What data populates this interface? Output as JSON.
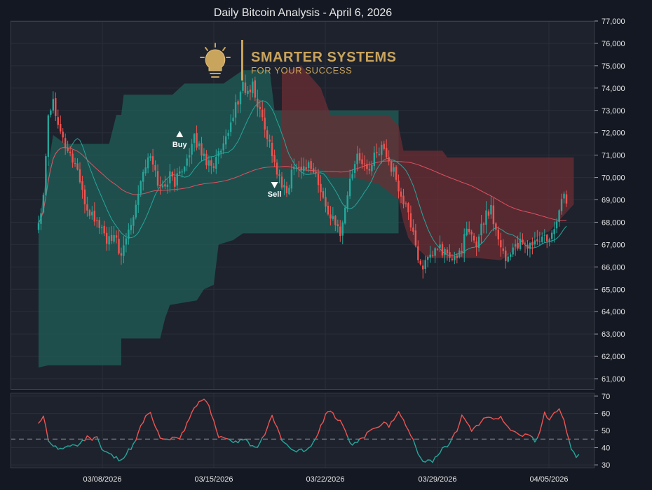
{
  "chart_data": {
    "type": "candlestick",
    "title": "Daily Bitcoin Analysis - April 6, 2026",
    "x_tick_labels": [
      "03/08/2026",
      "03/15/2026",
      "03/22/2026",
      "03/29/2026",
      "04/05/2026"
    ],
    "price_axis": {
      "ylim": [
        60500,
        77000
      ],
      "ticks": [
        61000,
        62000,
        63000,
        64000,
        65000,
        66000,
        67000,
        68000,
        69000,
        70000,
        71000,
        72000,
        73000,
        74000,
        75000,
        76000,
        77000
      ],
      "tick_labels": [
        "61,000",
        "62,000",
        "63,000",
        "64,000",
        "65,000",
        "66,000",
        "67,000",
        "68,000",
        "69,000",
        "70,000",
        "71,000",
        "72,000",
        "73,000",
        "74,000",
        "75,000",
        "76,000",
        "77,000"
      ],
      "side": "right"
    },
    "oscillator_axis": {
      "ylim": [
        28,
        72
      ],
      "ticks": [
        30,
        40,
        50,
        60,
        70
      ],
      "tick_labels": [
        "30",
        "40",
        "50",
        "60",
        "70"
      ],
      "reference_level": 45
    },
    "grid": true,
    "colors": {
      "up": "#26a69a",
      "down": "#ef5350",
      "bull_zone": "#1f5f58",
      "bear_zone": "#6b2e34",
      "long_ma": "#e05060",
      "short_ma": "#26a69a",
      "osc_bull": "#26a69a",
      "osc_bear": "#ef5350",
      "background": "#1e222d",
      "logo": "#c9a45c"
    },
    "price_anchors": [
      [
        0,
        68000
      ],
      [
        2,
        69300
      ],
      [
        4,
        72900
      ],
      [
        6,
        73400
      ],
      [
        8,
        72600
      ],
      [
        10,
        71700
      ],
      [
        12,
        71200
      ],
      [
        14,
        70800
      ],
      [
        16,
        70400
      ],
      [
        18,
        69200
      ],
      [
        20,
        68600
      ],
      [
        22,
        68300
      ],
      [
        24,
        68000
      ],
      [
        26,
        67700
      ],
      [
        28,
        67200
      ],
      [
        30,
        67100
      ],
      [
        32,
        67300
      ],
      [
        34,
        66300
      ],
      [
        36,
        67300
      ],
      [
        38,
        68000
      ],
      [
        40,
        68900
      ],
      [
        42,
        69900
      ],
      [
        44,
        70600
      ],
      [
        46,
        70900
      ],
      [
        48,
        70200
      ],
      [
        50,
        69500
      ],
      [
        52,
        69700
      ],
      [
        54,
        70100
      ],
      [
        56,
        69800
      ],
      [
        58,
        70200
      ],
      [
        60,
        70700
      ],
      [
        62,
        70900
      ],
      [
        64,
        71700
      ],
      [
        66,
        71400
      ],
      [
        68,
        70900
      ],
      [
        70,
        70700
      ],
      [
        72,
        70600
      ],
      [
        74,
        71000
      ],
      [
        76,
        71300
      ],
      [
        78,
        71900
      ],
      [
        80,
        72900
      ],
      [
        82,
        73400
      ],
      [
        84,
        74200
      ],
      [
        86,
        73700
      ],
      [
        88,
        74100
      ],
      [
        90,
        73200
      ],
      [
        92,
        72700
      ],
      [
        94,
        71900
      ],
      [
        96,
        71100
      ],
      [
        98,
        70200
      ],
      [
        100,
        69600
      ],
      [
        102,
        69300
      ],
      [
        104,
        70200
      ],
      [
        106,
        70700
      ],
      [
        108,
        70300
      ],
      [
        110,
        70600
      ],
      [
        112,
        70500
      ],
      [
        114,
        70100
      ],
      [
        116,
        69300
      ],
      [
        118,
        68700
      ],
      [
        120,
        68300
      ],
      [
        122,
        67800
      ],
      [
        124,
        67600
      ],
      [
        126,
        68600
      ],
      [
        128,
        69900
      ],
      [
        130,
        70700
      ],
      [
        132,
        71000
      ],
      [
        134,
        70500
      ],
      [
        136,
        70300
      ],
      [
        138,
        70900
      ],
      [
        140,
        71100
      ],
      [
        142,
        71500
      ],
      [
        144,
        70700
      ],
      [
        146,
        70200
      ],
      [
        148,
        69500
      ],
      [
        150,
        68900
      ],
      [
        152,
        68300
      ],
      [
        154,
        67600
      ],
      [
        156,
        66300
      ],
      [
        158,
        66100
      ],
      [
        160,
        66200
      ],
      [
        162,
        66500
      ],
      [
        164,
        66900
      ],
      [
        166,
        66700
      ],
      [
        168,
        66600
      ],
      [
        170,
        66200
      ],
      [
        172,
        66500
      ],
      [
        174,
        66900
      ],
      [
        176,
        67600
      ],
      [
        178,
        67300
      ],
      [
        180,
        67000
      ],
      [
        182,
        67900
      ],
      [
        184,
        68300
      ],
      [
        186,
        68700
      ],
      [
        188,
        67600
      ],
      [
        190,
        67100
      ],
      [
        192,
        66300
      ],
      [
        194,
        66700
      ],
      [
        196,
        67000
      ],
      [
        198,
        67000
      ],
      [
        200,
        66900
      ],
      [
        202,
        67000
      ],
      [
        204,
        67100
      ],
      [
        206,
        67200
      ],
      [
        208,
        67300
      ],
      [
        210,
        67100
      ],
      [
        212,
        67600
      ],
      [
        214,
        68700
      ],
      [
        216,
        69200
      ],
      [
        217,
        69000
      ]
    ],
    "oscillator_anchors": [
      [
        0,
        55
      ],
      [
        2,
        58
      ],
      [
        4,
        45
      ],
      [
        6,
        41
      ],
      [
        8,
        40
      ],
      [
        10,
        39
      ],
      [
        12,
        41
      ],
      [
        14,
        42
      ],
      [
        16,
        40
      ],
      [
        18,
        44
      ],
      [
        20,
        46
      ],
      [
        22,
        45
      ],
      [
        24,
        47
      ],
      [
        26,
        38
      ],
      [
        28,
        37
      ],
      [
        30,
        36
      ],
      [
        32,
        34
      ],
      [
        34,
        32
      ],
      [
        36,
        37
      ],
      [
        38,
        40
      ],
      [
        40,
        45
      ],
      [
        42,
        52
      ],
      [
        44,
        58
      ],
      [
        46,
        60
      ],
      [
        48,
        52
      ],
      [
        50,
        46
      ],
      [
        52,
        44
      ],
      [
        54,
        45
      ],
      [
        56,
        47
      ],
      [
        58,
        46
      ],
      [
        60,
        50
      ],
      [
        62,
        57
      ],
      [
        64,
        63
      ],
      [
        66,
        67
      ],
      [
        68,
        68
      ],
      [
        70,
        64
      ],
      [
        72,
        56
      ],
      [
        74,
        47
      ],
      [
        76,
        45
      ],
      [
        78,
        44
      ],
      [
        80,
        44
      ],
      [
        82,
        43
      ],
      [
        84,
        45
      ],
      [
        86,
        43
      ],
      [
        88,
        41
      ],
      [
        90,
        40
      ],
      [
        92,
        45
      ],
      [
        94,
        51
      ],
      [
        96,
        59
      ],
      [
        98,
        52
      ],
      [
        100,
        45
      ],
      [
        102,
        41
      ],
      [
        104,
        40
      ],
      [
        106,
        38
      ],
      [
        108,
        39
      ],
      [
        110,
        38
      ],
      [
        112,
        41
      ],
      [
        114,
        45
      ],
      [
        116,
        52
      ],
      [
        118,
        59
      ],
      [
        120,
        61
      ],
      [
        122,
        58
      ],
      [
        124,
        55
      ],
      [
        126,
        50
      ],
      [
        128,
        43
      ],
      [
        130,
        42
      ],
      [
        132,
        44
      ],
      [
        134,
        46
      ],
      [
        136,
        50
      ],
      [
        138,
        52
      ],
      [
        140,
        53
      ],
      [
        142,
        55
      ],
      [
        144,
        52
      ],
      [
        146,
        57
      ],
      [
        148,
        61
      ],
      [
        150,
        57
      ],
      [
        152,
        50
      ],
      [
        154,
        44
      ],
      [
        156,
        36
      ],
      [
        158,
        33
      ],
      [
        160,
        32
      ],
      [
        162,
        32
      ],
      [
        164,
        35
      ],
      [
        166,
        39
      ],
      [
        168,
        41
      ],
      [
        170,
        45
      ],
      [
        172,
        50
      ],
      [
        174,
        60
      ],
      [
        176,
        54
      ],
      [
        178,
        50
      ],
      [
        180,
        52
      ],
      [
        182,
        56
      ],
      [
        184,
        58
      ],
      [
        186,
        58
      ],
      [
        188,
        56
      ],
      [
        190,
        58
      ],
      [
        192,
        54
      ],
      [
        194,
        50
      ],
      [
        196,
        49
      ],
      [
        198,
        47
      ],
      [
        200,
        48
      ],
      [
        202,
        47
      ],
      [
        204,
        44
      ],
      [
        206,
        48
      ],
      [
        208,
        60
      ],
      [
        210,
        56
      ],
      [
        212,
        61
      ],
      [
        214,
        62
      ],
      [
        216,
        57
      ],
      [
        218,
        44
      ],
      [
        219,
        39
      ],
      [
        221,
        35
      ],
      [
        222,
        37
      ]
    ],
    "bull_zone_top": [
      [
        0,
        67900
      ],
      [
        6,
        71900
      ],
      [
        11,
        71500
      ],
      [
        17,
        71500
      ],
      [
        25,
        71500
      ],
      [
        29,
        71500
      ],
      [
        32,
        72800
      ],
      [
        34,
        72800
      ],
      [
        35,
        73700
      ],
      [
        55,
        73700
      ],
      [
        60,
        74200
      ],
      [
        76,
        74200
      ],
      [
        84,
        74800
      ],
      [
        95,
        74800
      ],
      [
        97,
        73000
      ],
      [
        148,
        73000
      ]
    ],
    "bull_zone_bottom": [
      [
        0,
        61500
      ],
      [
        4,
        61600
      ],
      [
        34,
        61600
      ],
      [
        34,
        62800
      ],
      [
        50,
        62800
      ],
      [
        52,
        63700
      ],
      [
        54,
        64300
      ],
      [
        65,
        64500
      ],
      [
        68,
        65000
      ],
      [
        72,
        65200
      ],
      [
        74,
        67000
      ],
      [
        80,
        67200
      ],
      [
        84,
        67500
      ],
      [
        130,
        67500
      ],
      [
        148,
        67500
      ]
    ],
    "bear_zone_top": [
      [
        100,
        74700
      ],
      [
        108,
        75000
      ],
      [
        116,
        74000
      ],
      [
        120,
        72800
      ],
      [
        144,
        72800
      ],
      [
        148,
        72300
      ],
      [
        150,
        71200
      ],
      [
        166,
        71200
      ],
      [
        168,
        70900
      ],
      [
        220,
        70900
      ]
    ],
    "bear_zone_bottom": [
      [
        100,
        70400
      ],
      [
        116,
        70400
      ],
      [
        120,
        70000
      ],
      [
        130,
        70000
      ],
      [
        140,
        69700
      ],
      [
        148,
        69000
      ],
      [
        150,
        68000
      ],
      [
        152,
        67300
      ],
      [
        154,
        67000
      ],
      [
        160,
        66400
      ],
      [
        180,
        66400
      ],
      [
        190,
        66300
      ],
      [
        200,
        67100
      ],
      [
        210,
        67600
      ],
      [
        220,
        68800
      ]
    ],
    "annotations": [
      {
        "label": "Buy",
        "index": 58,
        "price": 71900,
        "marker": "up"
      },
      {
        "label": "Sell",
        "index": 97,
        "price": 69800,
        "marker": "down"
      }
    ],
    "logo": {
      "line1": "SMARTER SYSTEMS",
      "line2": "FOR YOUR SUCCESS"
    }
  }
}
